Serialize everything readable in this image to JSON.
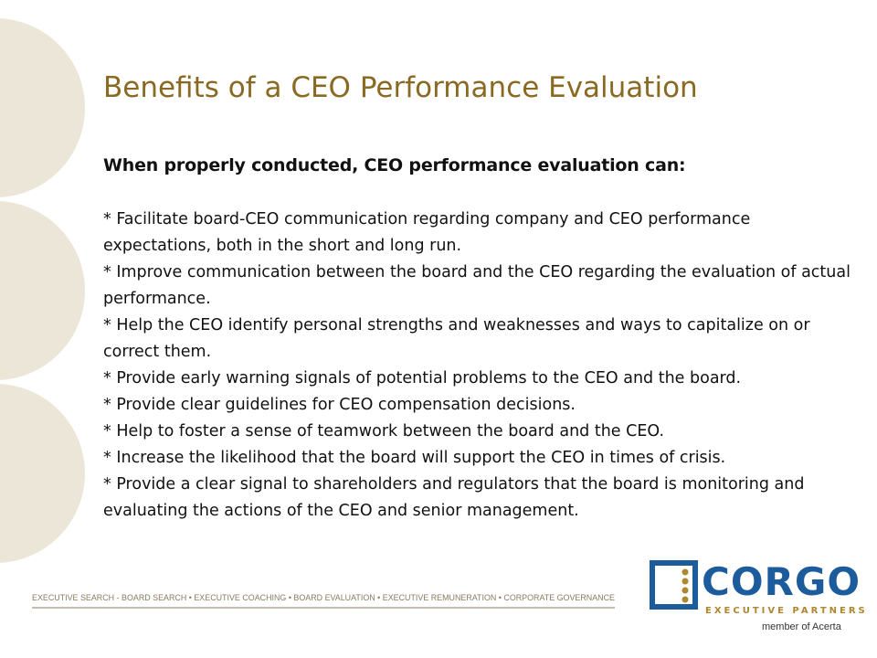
{
  "slide": {
    "title": "Benefits of a CEO Performance Evaluation",
    "subtitle": "When properly conducted, CEO performance evaluation can:",
    "bullets": [
      "* Facilitate board-CEO communication regarding company and CEO performance expectations, both in the short and long run.",
      "* Improve communication between the board and the CEO regarding the evaluation of actual performance.",
      "* Help the CEO identify personal strengths and weaknesses and ways to capitalize on or correct them.",
      "* Provide early warning signals of potential problems to the CEO and the board.",
      "* Provide clear guidelines for CEO compensation decisions.",
      "* Help to foster a sense of teamwork between the board and the CEO.",
      "* Increase the likelihood that the board will support the CEO in times of crisis.",
      "* Provide a clear signal to shareholders and regulators that the board is monitoring and evaluating the actions of the CEO and senior management."
    ]
  },
  "footer": {
    "services": "EXECUTIVE SEARCH - BOARD SEARCH • EXECUTIVE COACHING • BOARD EVALUATION • EXECUTIVE REMUNERATION • CORPORATE GOVERNANCE",
    "logo_name": "CORGO",
    "logo_tagline": "EXECUTIVE PARTNERS",
    "member_note": "member of Acerta"
  }
}
